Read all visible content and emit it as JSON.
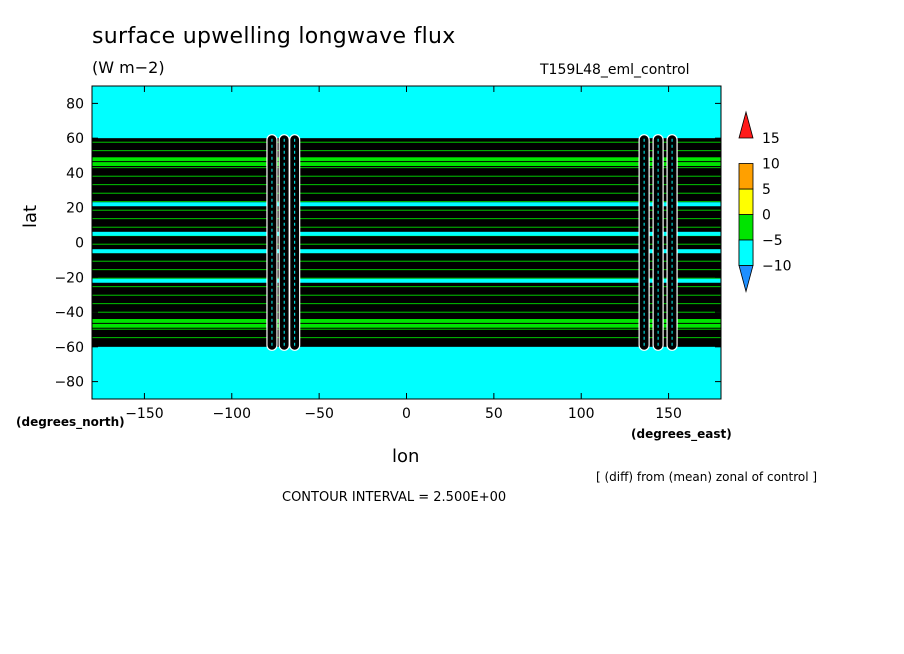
{
  "chart_data": {
    "type": "heatmap",
    "title": "surface upwelling longwave flux",
    "units": "(W m−2)",
    "run_name": "T159L48_eml_control",
    "xlabel": "lon",
    "ylabel": "lat",
    "x_units": "(degrees_east)",
    "y_units": "(degrees_north)",
    "xlim": [
      -180,
      180
    ],
    "ylim": [
      -90,
      90
    ],
    "x_ticks": [
      -150,
      -100,
      -50,
      0,
      50,
      100,
      150
    ],
    "y_ticks": [
      80,
      60,
      40,
      20,
      0,
      -20,
      -40,
      -60,
      -80
    ],
    "background_level": "-5 to 0",
    "colorbar": {
      "levels": [
        -10,
        -5,
        0,
        5,
        10,
        15
      ],
      "labels": [
        "15",
        "10",
        "5",
        "0",
        "−5",
        "−10"
      ],
      "colors": [
        "#1e8fff",
        "#00ffff",
        "#00e400",
        "#ffff00",
        "#ffa000",
        "#ff1a1a"
      ]
    },
    "bands": {
      "lat_range": [
        -60,
        60
      ],
      "green_lat_bands": [
        [
          44,
          49
        ],
        [
          -49,
          -44
        ]
      ],
      "cyan_lat_lines": [
        22,
        5,
        -5,
        -22
      ],
      "vertical_strips_lon": [
        -77,
        -70,
        -64,
        136,
        144,
        152
      ]
    },
    "contour_interval_text": "CONTOUR INTERVAL = 2.500E+00",
    "note": "[ (diff) from (mean) zonal of control ]"
  },
  "colors": {
    "black_fill": "#000000",
    "cyan": "#00ffff",
    "green": "#00e400"
  }
}
